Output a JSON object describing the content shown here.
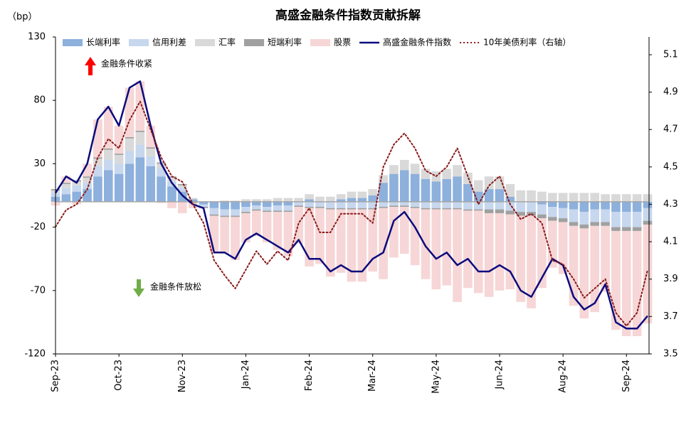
{
  "chart_data": {
    "type": "bar",
    "stacked": true,
    "title": "高盛金融条件指数贡献拆解",
    "y_unit": "（bp）",
    "categories": [
      "Sep-23",
      null,
      null,
      null,
      null,
      null,
      "Oct-23",
      null,
      null,
      null,
      null,
      null,
      "Nov-23",
      null,
      null,
      null,
      null,
      null,
      "Jan-24",
      null,
      null,
      null,
      null,
      null,
      "Feb-24",
      null,
      null,
      null,
      null,
      null,
      "Mar-24",
      null,
      null,
      null,
      null,
      null,
      "May-24",
      null,
      null,
      null,
      null,
      null,
      "Jun-24",
      null,
      null,
      null,
      null,
      null,
      "Aug-24",
      null,
      null,
      null,
      null,
      null,
      "Sep-24",
      null,
      null
    ],
    "ylim": [
      -120,
      130
    ],
    "yticks": [
      130,
      80,
      30,
      -20,
      -70,
      -120
    ],
    "y2lim": [
      3.5,
      5.195
    ],
    "y2ticks": [
      5.1,
      4.9,
      4.7,
      4.5,
      4.3,
      4.1,
      3.9,
      3.7,
      3.5
    ],
    "negative_tick_color": "#ff0000",
    "zero_line_color": "#a6a6a6",
    "legend": "top",
    "series": [
      {
        "name": "长端利率",
        "type": "bar",
        "color": "#8db0dc",
        "values": [
          4,
          6,
          8,
          10,
          20,
          25,
          22,
          30,
          35,
          28,
          20,
          12,
          8,
          2,
          -2,
          -5,
          -6,
          -6,
          -4,
          -3,
          -4,
          -3,
          -3,
          0,
          2,
          0,
          0,
          2,
          3,
          3,
          5,
          15,
          22,
          25,
          22,
          18,
          16,
          18,
          20,
          14,
          8,
          10,
          10,
          4,
          0,
          0,
          -2,
          -4,
          -5,
          -6,
          -8,
          -6,
          -6,
          -8,
          -8,
          -8,
          -5
        ]
      },
      {
        "name": "信用利差",
        "type": "bar",
        "color": "#c6d7ee",
        "values": [
          3,
          5,
          5,
          5,
          8,
          8,
          8,
          10,
          10,
          8,
          6,
          4,
          3,
          0,
          -2,
          -5,
          -5,
          -5,
          -4,
          -3,
          -3,
          -4,
          -4,
          -3,
          -4,
          -4,
          -5,
          -5,
          -5,
          -5,
          -5,
          -4,
          -3,
          -3,
          -4,
          -5,
          -5,
          -5,
          -5,
          -6,
          -6,
          -6,
          -6,
          -7,
          -8,
          -8,
          -8,
          -8,
          -8,
          -10,
          -10,
          -10,
          -10,
          -12,
          -12,
          -12,
          -10
        ]
      },
      {
        "name": "汇率",
        "type": "bar",
        "color": "#d9d9d9",
        "values": [
          2,
          3,
          3,
          4,
          6,
          8,
          7,
          10,
          10,
          6,
          4,
          3,
          2,
          1,
          0,
          0,
          1,
          1,
          2,
          2,
          2,
          3,
          3,
          3,
          4,
          4,
          4,
          4,
          5,
          5,
          5,
          6,
          7,
          8,
          8,
          8,
          8,
          8,
          9,
          9,
          9,
          10,
          10,
          10,
          9,
          9,
          8,
          7,
          7,
          7,
          7,
          7,
          6,
          6,
          6,
          6,
          6
        ]
      },
      {
        "name": "短端利率",
        "type": "bar",
        "color": "#a0a0a0",
        "values": [
          1,
          1,
          1,
          1,
          1,
          1,
          1,
          1,
          1,
          1,
          1,
          1,
          1,
          -1,
          -1,
          -1,
          -1,
          -1,
          -1,
          -1,
          -1,
          -1,
          -1,
          -1,
          -1,
          -1,
          -1,
          -1,
          -1,
          -1,
          -1,
          -1,
          -1,
          -1,
          -1,
          -1,
          -1,
          -1,
          -1,
          -1,
          -1,
          -3,
          -3,
          -3,
          -3,
          -3,
          -3,
          -3,
          -3,
          -3,
          -3,
          -3,
          -3,
          -3,
          -3,
          -3,
          -3
        ]
      },
      {
        "name": "股票",
        "type": "bar",
        "color": "#f6d6d6",
        "values": [
          -3,
          5,
          -2,
          10,
          30,
          33,
          22,
          39,
          39,
          17,
          -1,
          -5,
          -9,
          -4,
          0,
          -29,
          -29,
          -34,
          -23,
          -20,
          -24,
          -30,
          -35,
          -29,
          -46,
          -44,
          -53,
          -50,
          -57,
          -57,
          -49,
          -56,
          -40,
          -37,
          -45,
          -55,
          -63,
          -60,
          -73,
          -61,
          -65,
          -66,
          -61,
          -59,
          -68,
          -73,
          -55,
          -37,
          -41,
          -63,
          -71,
          -68,
          -52,
          -78,
          -83,
          -83,
          -78
        ]
      },
      {
        "name": "高盛金融条件指数",
        "type": "line",
        "color": "#0b0b7d",
        "values": [
          7,
          20,
          15,
          30,
          65,
          75,
          60,
          90,
          95,
          60,
          30,
          15,
          5,
          -2,
          -5,
          -40,
          -40,
          -45,
          -30,
          -25,
          -30,
          -35,
          -40,
          -30,
          -45,
          -45,
          -55,
          -50,
          -55,
          -55,
          -45,
          -40,
          -15,
          -8,
          -20,
          -35,
          -45,
          -40,
          -50,
          -45,
          -55,
          -55,
          -50,
          -55,
          -70,
          -75,
          -60,
          -45,
          -50,
          -75,
          -85,
          -80,
          -65,
          -95,
          -100,
          -100,
          -90
        ]
      },
      {
        "name": "10年美债利率（右轴）",
        "type": "line",
        "dashed": true,
        "axis": "y2",
        "color": "#8b1a1a",
        "values": [
          4.18,
          4.27,
          4.3,
          4.38,
          4.55,
          4.65,
          4.6,
          4.75,
          4.85,
          4.7,
          4.55,
          4.45,
          4.42,
          4.3,
          4.2,
          4.0,
          3.92,
          3.85,
          3.95,
          4.05,
          3.98,
          4.05,
          4.0,
          4.2,
          4.28,
          4.15,
          4.15,
          4.25,
          4.25,
          4.25,
          4.2,
          4.5,
          4.62,
          4.68,
          4.6,
          4.48,
          4.45,
          4.5,
          4.6,
          4.45,
          4.3,
          4.4,
          4.45,
          4.3,
          4.22,
          4.25,
          4.2,
          4.0,
          3.98,
          3.9,
          3.8,
          3.85,
          3.9,
          3.72,
          3.65,
          3.72,
          3.95
        ]
      }
    ],
    "annotations": [
      {
        "text": "金融条件收紧",
        "color": "#ff0000"
      },
      {
        "text": "金融条件放松",
        "color": "#70ad47"
      }
    ]
  }
}
